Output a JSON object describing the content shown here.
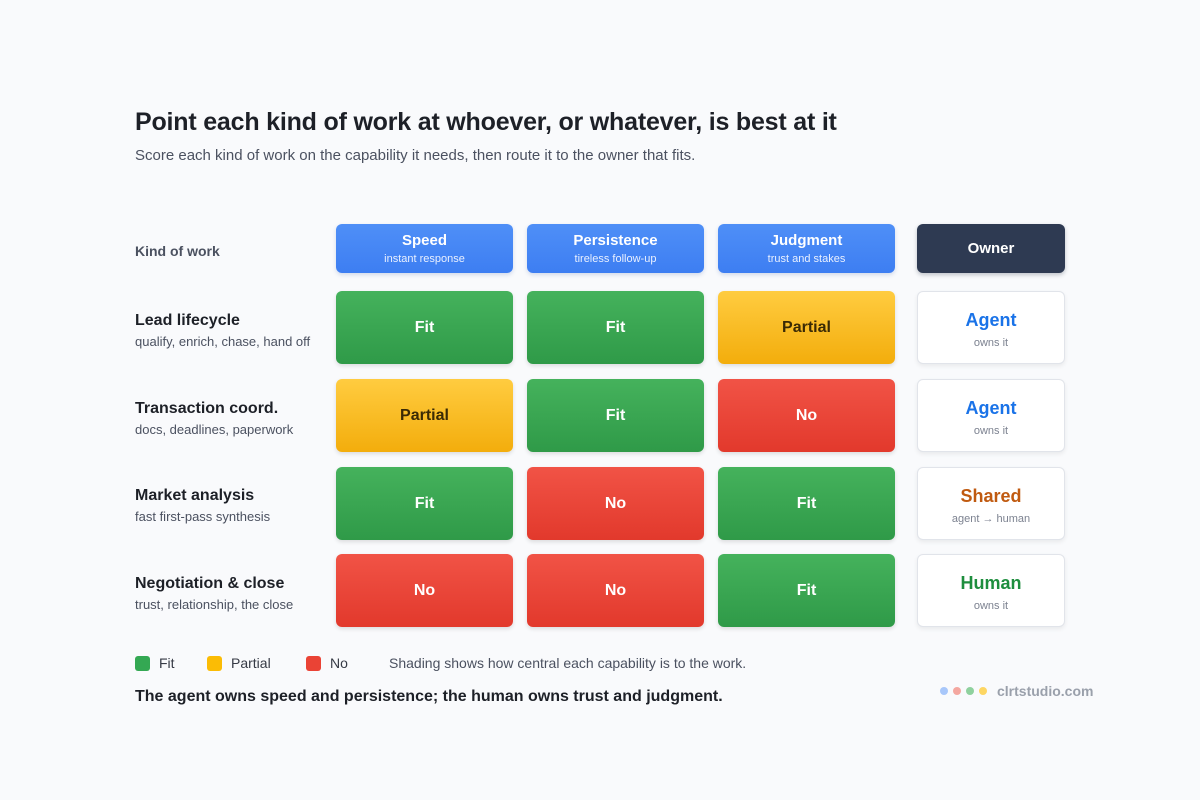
{
  "header": {
    "title": "Point each kind of work at whoever, or whatever, is best at it",
    "subtitle": "Score each kind of work on the capability it needs, then route it to the owner that fits."
  },
  "matrix": {
    "corner_label": "Kind of work",
    "columns": [
      {
        "name": "Speed",
        "sub": "instant response"
      },
      {
        "name": "Persistence",
        "sub": "tireless follow-up"
      },
      {
        "name": "Judgment",
        "sub": "trust and stakes"
      }
    ],
    "owner_header": "Owner",
    "rows": [
      {
        "name": "Lead lifecycle",
        "sub": "qualify, enrich, chase, hand off",
        "cells": [
          "Fit",
          "Fit",
          "Partial"
        ],
        "owner": "Agent",
        "owner_sub": "owns it"
      },
      {
        "name": "Transaction coord.",
        "sub": "docs, deadlines, paperwork",
        "cells": [
          "Partial",
          "Fit",
          "No"
        ],
        "owner": "Agent",
        "owner_sub": "owns it"
      },
      {
        "name": "Market analysis",
        "sub": "fast first-pass synthesis",
        "cells": [
          "Fit",
          "No",
          "Fit"
        ],
        "owner": "Shared",
        "owner_sub": "agent → human"
      },
      {
        "name": "Negotiation & close",
        "sub": "trust, relationship, the close",
        "cells": [
          "No",
          "No",
          "Fit"
        ],
        "owner": "Human",
        "owner_sub": "owns it"
      }
    ]
  },
  "colors": {
    "fit": "#34a853",
    "partial": "#fbbc05",
    "no": "#ea4335",
    "agent": "#1a73e8",
    "shared": "#c05a10",
    "human": "#1e8e3e",
    "header": "#4285f4",
    "owner_header": "#2e3a52"
  },
  "legend": {
    "fit": "Fit",
    "partial": "Partial",
    "no": "No",
    "note": "Shading shows how central each capability is to the work."
  },
  "takeaway": "The agent owns speed and persistence; the human owns trust and judgment.",
  "brand": {
    "name": "clrtstudio.com",
    "dot_colors": [
      "#a8c7fa",
      "#f4a7a0",
      "#8fd19e",
      "#fdd663"
    ]
  }
}
